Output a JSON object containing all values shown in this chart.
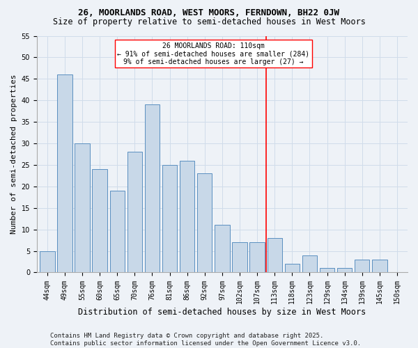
{
  "title": "26, MOORLANDS ROAD, WEST MOORS, FERNDOWN, BH22 0JW",
  "subtitle": "Size of property relative to semi-detached houses in West Moors",
  "xlabel": "Distribution of semi-detached houses by size in West Moors",
  "ylabel": "Number of semi-detached properties",
  "categories": [
    "44sqm",
    "49sqm",
    "55sqm",
    "60sqm",
    "65sqm",
    "70sqm",
    "76sqm",
    "81sqm",
    "86sqm",
    "92sqm",
    "97sqm",
    "102sqm",
    "107sqm",
    "113sqm",
    "118sqm",
    "123sqm",
    "129sqm",
    "134sqm",
    "139sqm",
    "145sqm",
    "150sqm"
  ],
  "values": [
    5,
    46,
    30,
    24,
    19,
    28,
    39,
    25,
    26,
    23,
    11,
    7,
    7,
    8,
    2,
    4,
    1,
    1,
    3,
    3,
    0
  ],
  "bar_color": "#c8d8e8",
  "bar_edge_color": "#5a8fc0",
  "grid_color": "#d0dcea",
  "background_color": "#eef2f7",
  "vline_x_idx": 12.5,
  "vline_label": "26 MOORLANDS ROAD: 110sqm",
  "annotation_line1": "← 91% of semi-detached houses are smaller (284)",
  "annotation_line2": "9% of semi-detached houses are larger (27) →",
  "ylim": [
    0,
    55
  ],
  "yticks": [
    0,
    5,
    10,
    15,
    20,
    25,
    30,
    35,
    40,
    45,
    50,
    55
  ],
  "footer_line1": "Contains HM Land Registry data © Crown copyright and database right 2025.",
  "footer_line2": "Contains public sector information licensed under the Open Government Licence v3.0.",
  "title_fontsize": 9,
  "subtitle_fontsize": 8.5,
  "xlabel_fontsize": 8.5,
  "ylabel_fontsize": 8,
  "tick_fontsize": 7,
  "footer_fontsize": 6.5,
  "annot_fontsize": 7
}
